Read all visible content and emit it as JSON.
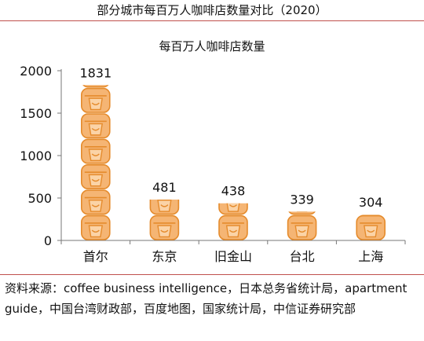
{
  "figure": {
    "title": "部分城市每百万人咖啡店数量对比（2020）",
    "source": "资料来源：coffee business intelligence，日本总务省统计局，apartment guide，中国台湾财政部，百度地图，国家统计局，中信证券研究部"
  },
  "chart_data": {
    "type": "bar",
    "title": "每百万人咖啡店数量",
    "categories": [
      "首尔",
      "东京",
      "旧金山",
      "台北",
      "上海"
    ],
    "values": [
      1831,
      481,
      438,
      339,
      304
    ],
    "ylim": [
      0,
      2000
    ],
    "yticks": [
      0,
      500,
      1000,
      1500,
      2000
    ],
    "grid": false,
    "legend": "none",
    "bar_style": "stacked coffee-cup pictograms",
    "colors": {
      "fill": "#f5b574",
      "stroke": "#e58b2c",
      "rule": "#c0504d"
    }
  }
}
